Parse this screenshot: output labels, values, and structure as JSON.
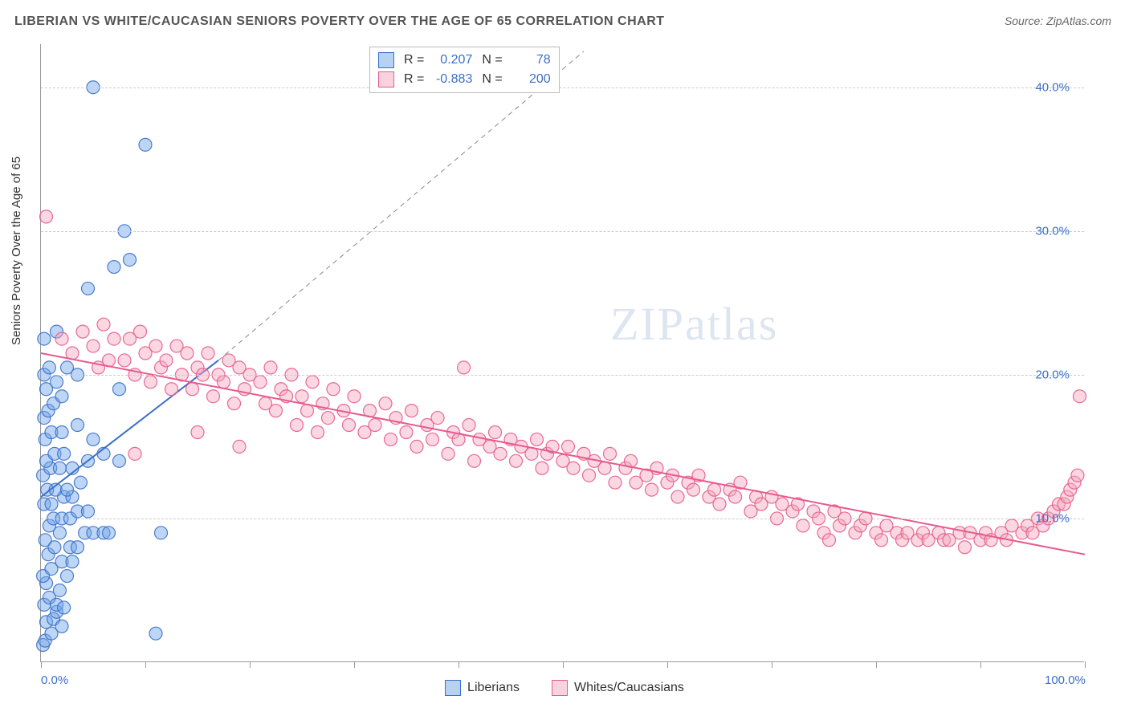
{
  "title": "LIBERIAN VS WHITE/CAUCASIAN SENIORS POVERTY OVER THE AGE OF 65 CORRELATION CHART",
  "source_label": "Source: ZipAtlas.com",
  "ylabel": "Seniors Poverty Over the Age of 65",
  "watermark": "ZIPatlas",
  "legend_bottom": {
    "series1": "Liberians",
    "series2": "Whites/Caucasians"
  },
  "legend_top": {
    "r_label": "R =",
    "n_label": "N =",
    "series1": {
      "r": "0.207",
      "n": "78"
    },
    "series2": {
      "r": "-0.883",
      "n": "200"
    }
  },
  "chart": {
    "type": "scatter",
    "xlim": [
      0,
      100
    ],
    "ylim": [
      0,
      43
    ],
    "x_ticks": [
      0,
      10,
      20,
      30,
      40,
      50,
      60,
      70,
      80,
      90,
      100
    ],
    "x_tick_labels": {
      "0": "0.0%",
      "100": "100.0%"
    },
    "y_gridlines": [
      10,
      20,
      30,
      40
    ],
    "y_tick_labels": {
      "10": "10.0%",
      "20": "20.0%",
      "30": "30.0%",
      "40": "40.0%"
    },
    "background_color": "#ffffff",
    "grid_color": "#cccccc",
    "axis_color": "#999999",
    "tick_label_color": "#3b6fc9",
    "marker_radius": 8,
    "marker_opacity": 0.45,
    "marker_stroke_opacity": 0.9,
    "series": [
      {
        "name": "Liberians",
        "color_fill": "#6fa3e8",
        "color_stroke": "#3b6fc9",
        "trend": {
          "x1": 0,
          "y1": 11.5,
          "x2": 17,
          "y2": 21.0,
          "dashed_extend_to_x": 52,
          "dashed_extend_to_y": 42.5
        },
        "points": [
          [
            0.2,
            1.2
          ],
          [
            0.4,
            1.5
          ],
          [
            0.5,
            2.8
          ],
          [
            1.0,
            2.0
          ],
          [
            1.2,
            3.0
          ],
          [
            1.5,
            3.5
          ],
          [
            2.0,
            2.5
          ],
          [
            0.3,
            4.0
          ],
          [
            0.8,
            4.5
          ],
          [
            1.5,
            4.0
          ],
          [
            2.2,
            3.8
          ],
          [
            1.8,
            5.0
          ],
          [
            0.5,
            5.5
          ],
          [
            0.2,
            6.0
          ],
          [
            1.0,
            6.5
          ],
          [
            2.5,
            6.0
          ],
          [
            2.0,
            7.0
          ],
          [
            3.0,
            7.0
          ],
          [
            0.7,
            7.5
          ],
          [
            1.3,
            8.0
          ],
          [
            2.8,
            8.0
          ],
          [
            3.5,
            8.0
          ],
          [
            0.4,
            8.5
          ],
          [
            1.8,
            9.0
          ],
          [
            4.2,
            9.0
          ],
          [
            5.0,
            9.0
          ],
          [
            6.0,
            9.0
          ],
          [
            11.5,
            9.0
          ],
          [
            0.8,
            9.5
          ],
          [
            1.2,
            10.0
          ],
          [
            2.0,
            10.0
          ],
          [
            2.8,
            10.0
          ],
          [
            3.5,
            10.5
          ],
          [
            4.5,
            10.5
          ],
          [
            0.3,
            11.0
          ],
          [
            1.0,
            11.0
          ],
          [
            2.2,
            11.5
          ],
          [
            3.0,
            11.5
          ],
          [
            0.6,
            12.0
          ],
          [
            1.4,
            12.0
          ],
          [
            2.5,
            12.0
          ],
          [
            3.8,
            12.5
          ],
          [
            6.5,
            9.0
          ],
          [
            0.2,
            13.0
          ],
          [
            0.9,
            13.5
          ],
          [
            1.8,
            13.5
          ],
          [
            3.0,
            13.5
          ],
          [
            0.5,
            14.0
          ],
          [
            1.3,
            14.5
          ],
          [
            2.2,
            14.5
          ],
          [
            4.5,
            14.0
          ],
          [
            6.0,
            14.5
          ],
          [
            7.5,
            14.0
          ],
          [
            0.4,
            15.5
          ],
          [
            1.0,
            16.0
          ],
          [
            2.0,
            16.0
          ],
          [
            3.5,
            16.5
          ],
          [
            5.0,
            15.5
          ],
          [
            0.3,
            17.0
          ],
          [
            0.7,
            17.5
          ],
          [
            1.2,
            18.0
          ],
          [
            2.0,
            18.5
          ],
          [
            0.5,
            19.0
          ],
          [
            1.5,
            19.5
          ],
          [
            0.3,
            20.0
          ],
          [
            0.8,
            20.5
          ],
          [
            2.5,
            20.5
          ],
          [
            3.5,
            20.0
          ],
          [
            7.5,
            19.0
          ],
          [
            0.3,
            22.5
          ],
          [
            1.5,
            23.0
          ],
          [
            4.5,
            26.0
          ],
          [
            7.0,
            27.5
          ],
          [
            8.5,
            28.0
          ],
          [
            8.0,
            30.0
          ],
          [
            5.0,
            40.0
          ],
          [
            10.0,
            36.0
          ],
          [
            11.0,
            2.0
          ]
        ]
      },
      {
        "name": "Whites/Caucasians",
        "color_fill": "#f4a6bd",
        "color_stroke": "#e75a8d",
        "trend": {
          "x1": 0,
          "y1": 21.5,
          "x2": 100,
          "y2": 7.5
        },
        "points": [
          [
            0.5,
            31.0
          ],
          [
            2.0,
            22.5
          ],
          [
            3.0,
            21.5
          ],
          [
            4.0,
            23.0
          ],
          [
            5.0,
            22.0
          ],
          [
            5.5,
            20.5
          ],
          [
            6.0,
            23.5
          ],
          [
            6.5,
            21.0
          ],
          [
            7.0,
            22.5
          ],
          [
            8.0,
            21.0
          ],
          [
            8.5,
            22.5
          ],
          [
            9.0,
            20.0
          ],
          [
            9.5,
            23.0
          ],
          [
            10.0,
            21.5
          ],
          [
            10.5,
            19.5
          ],
          [
            11.0,
            22.0
          ],
          [
            11.5,
            20.5
          ],
          [
            12.0,
            21.0
          ],
          [
            12.5,
            19.0
          ],
          [
            9.0,
            14.5
          ],
          [
            13.0,
            22.0
          ],
          [
            13.5,
            20.0
          ],
          [
            14.0,
            21.5
          ],
          [
            14.5,
            19.0
          ],
          [
            15.0,
            20.5
          ],
          [
            15.5,
            20.0
          ],
          [
            16.0,
            21.5
          ],
          [
            16.5,
            18.5
          ],
          [
            17.0,
            20.0
          ],
          [
            17.5,
            19.5
          ],
          [
            18.0,
            21.0
          ],
          [
            18.5,
            18.0
          ],
          [
            19.0,
            20.5
          ],
          [
            19.5,
            19.0
          ],
          [
            20.0,
            20.0
          ],
          [
            15.0,
            16.0
          ],
          [
            21.0,
            19.5
          ],
          [
            21.5,
            18.0
          ],
          [
            22.0,
            20.5
          ],
          [
            22.5,
            17.5
          ],
          [
            23.0,
            19.0
          ],
          [
            23.5,
            18.5
          ],
          [
            24.0,
            20.0
          ],
          [
            24.5,
            16.5
          ],
          [
            25.0,
            18.5
          ],
          [
            25.5,
            17.5
          ],
          [
            26.0,
            19.5
          ],
          [
            26.5,
            16.0
          ],
          [
            27.0,
            18.0
          ],
          [
            27.5,
            17.0
          ],
          [
            19.0,
            15.0
          ],
          [
            28.0,
            19.0
          ],
          [
            29.0,
            17.5
          ],
          [
            29.5,
            16.5
          ],
          [
            30.0,
            18.5
          ],
          [
            31.0,
            16.0
          ],
          [
            31.5,
            17.5
          ],
          [
            32.0,
            16.5
          ],
          [
            33.0,
            18.0
          ],
          [
            33.5,
            15.5
          ],
          [
            34.0,
            17.0
          ],
          [
            35.0,
            16.0
          ],
          [
            35.5,
            17.5
          ],
          [
            36.0,
            15.0
          ],
          [
            37.0,
            16.5
          ],
          [
            37.5,
            15.5
          ],
          [
            38.0,
            17.0
          ],
          [
            39.0,
            14.5
          ],
          [
            39.5,
            16.0
          ],
          [
            40.0,
            15.5
          ],
          [
            40.5,
            20.5
          ],
          [
            41.0,
            16.5
          ],
          [
            41.5,
            14.0
          ],
          [
            42.0,
            15.5
          ],
          [
            43.0,
            15.0
          ],
          [
            43.5,
            16.0
          ],
          [
            44.0,
            14.5
          ],
          [
            45.0,
            15.5
          ],
          [
            45.5,
            14.0
          ],
          [
            46.0,
            15.0
          ],
          [
            47.0,
            14.5
          ],
          [
            47.5,
            15.5
          ],
          [
            48.0,
            13.5
          ],
          [
            48.5,
            14.5
          ],
          [
            49.0,
            15.0
          ],
          [
            50.0,
            14.0
          ],
          [
            50.5,
            15.0
          ],
          [
            51.0,
            13.5
          ],
          [
            52.0,
            14.5
          ],
          [
            52.5,
            13.0
          ],
          [
            53.0,
            14.0
          ],
          [
            54.0,
            13.5
          ],
          [
            54.5,
            14.5
          ],
          [
            55.0,
            12.5
          ],
          [
            56.0,
            13.5
          ],
          [
            56.5,
            14.0
          ],
          [
            57.0,
            12.5
          ],
          [
            58.0,
            13.0
          ],
          [
            58.5,
            12.0
          ],
          [
            59.0,
            13.5
          ],
          [
            60.0,
            12.5
          ],
          [
            60.5,
            13.0
          ],
          [
            61.0,
            11.5
          ],
          [
            62.0,
            12.5
          ],
          [
            62.5,
            12.0
          ],
          [
            63.0,
            13.0
          ],
          [
            64.0,
            11.5
          ],
          [
            64.5,
            12.0
          ],
          [
            65.0,
            11.0
          ],
          [
            66.0,
            12.0
          ],
          [
            66.5,
            11.5
          ],
          [
            67.0,
            12.5
          ],
          [
            68.0,
            10.5
          ],
          [
            68.5,
            11.5
          ],
          [
            69.0,
            11.0
          ],
          [
            70.0,
            11.5
          ],
          [
            70.5,
            10.0
          ],
          [
            71.0,
            11.0
          ],
          [
            72.0,
            10.5
          ],
          [
            72.5,
            11.0
          ],
          [
            73.0,
            9.5
          ],
          [
            74.0,
            10.5
          ],
          [
            74.5,
            10.0
          ],
          [
            75.0,
            9.0
          ],
          [
            75.5,
            8.5
          ],
          [
            76.0,
            10.5
          ],
          [
            76.5,
            9.5
          ],
          [
            77.0,
            10.0
          ],
          [
            78.0,
            9.0
          ],
          [
            78.5,
            9.5
          ],
          [
            79.0,
            10.0
          ],
          [
            80.0,
            9.0
          ],
          [
            80.5,
            8.5
          ],
          [
            81.0,
            9.5
          ],
          [
            82.0,
            9.0
          ],
          [
            82.5,
            8.5
          ],
          [
            83.0,
            9.0
          ],
          [
            84.0,
            8.5
          ],
          [
            84.5,
            9.0
          ],
          [
            85.0,
            8.5
          ],
          [
            86.0,
            9.0
          ],
          [
            86.5,
            8.5
          ],
          [
            87.0,
            8.5
          ],
          [
            88.0,
            9.0
          ],
          [
            88.5,
            8.0
          ],
          [
            89.0,
            9.0
          ],
          [
            90.0,
            8.5
          ],
          [
            90.5,
            9.0
          ],
          [
            91.0,
            8.5
          ],
          [
            92.0,
            9.0
          ],
          [
            92.5,
            8.5
          ],
          [
            93.0,
            9.5
          ],
          [
            94.0,
            9.0
          ],
          [
            94.5,
            9.5
          ],
          [
            95.0,
            9.0
          ],
          [
            95.5,
            10.0
          ],
          [
            96.0,
            9.5
          ],
          [
            96.5,
            10.0
          ],
          [
            97.0,
            10.5
          ],
          [
            97.5,
            11.0
          ],
          [
            98.0,
            11.0
          ],
          [
            98.3,
            11.5
          ],
          [
            98.6,
            12.0
          ],
          [
            99.0,
            12.5
          ],
          [
            99.3,
            13.0
          ],
          [
            99.5,
            18.5
          ]
        ]
      }
    ]
  }
}
